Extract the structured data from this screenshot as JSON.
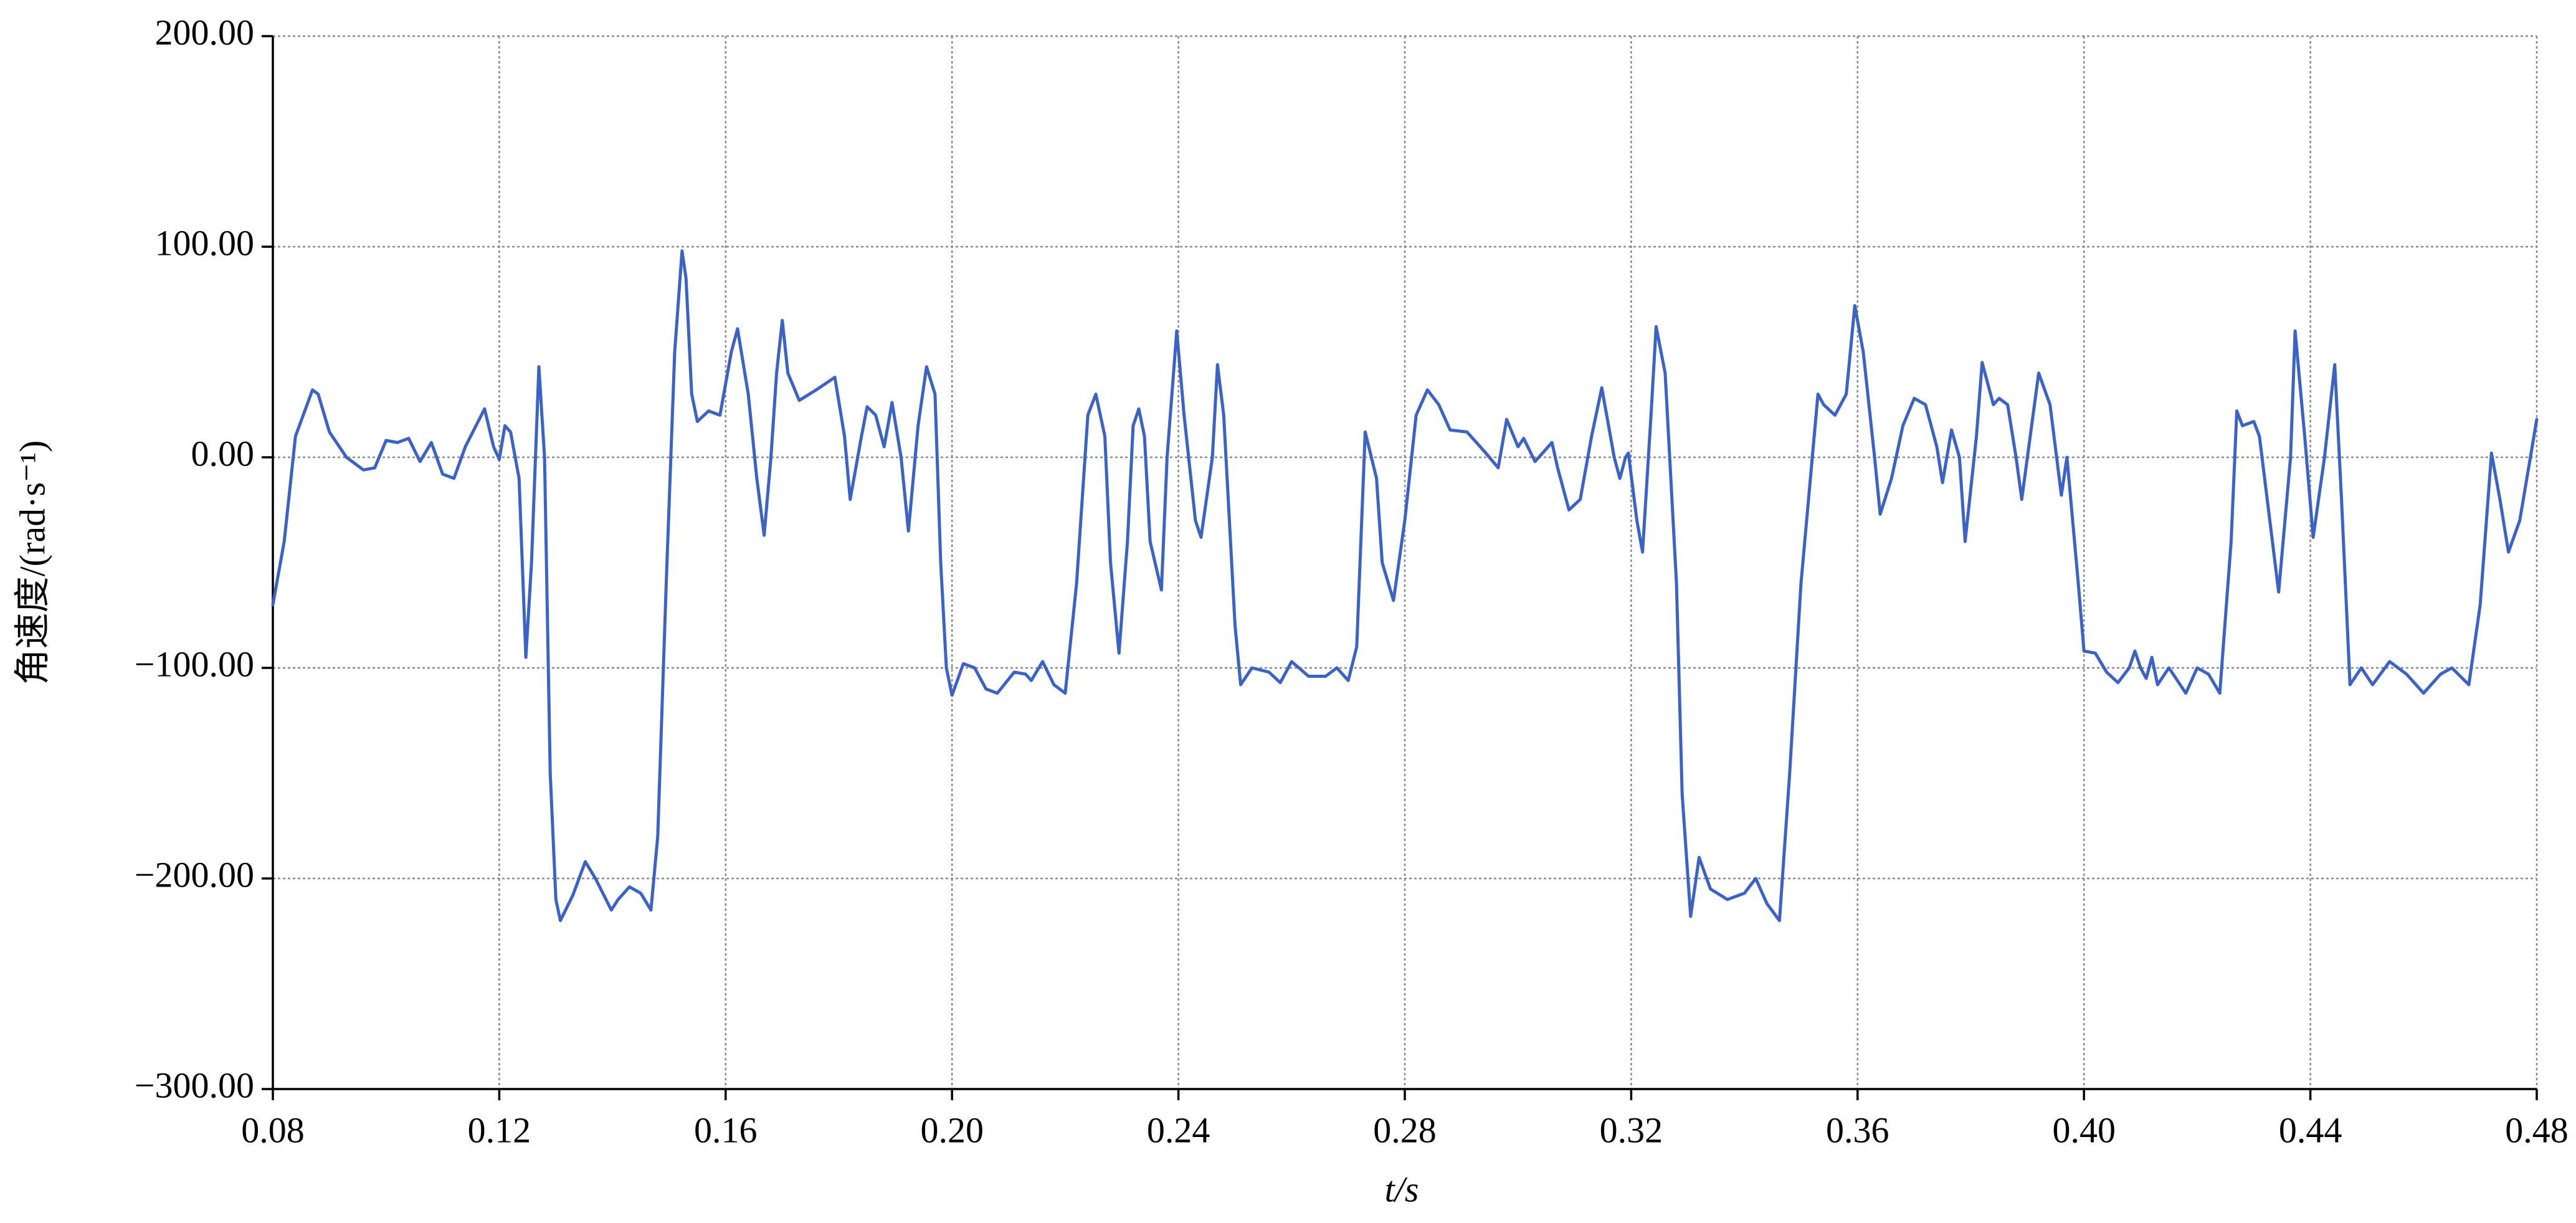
{
  "chart_data": {
    "type": "line",
    "xlabel": "t/s",
    "ylabel": "角速度/(rad·s⁻¹)",
    "xlim": [
      0.08,
      0.48
    ],
    "ylim": [
      -300,
      200
    ],
    "xticks": [
      {
        "value": 0.08,
        "label": "0.08"
      },
      {
        "value": 0.12,
        "label": "0.12"
      },
      {
        "value": 0.16,
        "label": "0.16"
      },
      {
        "value": 0.2,
        "label": "0.20"
      },
      {
        "value": 0.24,
        "label": "0.24"
      },
      {
        "value": 0.28,
        "label": "0.28"
      },
      {
        "value": 0.32,
        "label": "0.32"
      },
      {
        "value": 0.36,
        "label": "0.36"
      },
      {
        "value": 0.4,
        "label": "0.40"
      },
      {
        "value": 0.44,
        "label": "0.44"
      },
      {
        "value": 0.48,
        "label": "0.48"
      }
    ],
    "yticks": [
      {
        "value": 200,
        "label": "200.00"
      },
      {
        "value": 100,
        "label": "100.00"
      },
      {
        "value": 0,
        "label": "0.00"
      },
      {
        "value": -100,
        "label": "−100.00"
      },
      {
        "value": -200,
        "label": "−200.00"
      },
      {
        "value": -300,
        "label": "−300.00"
      }
    ],
    "grid": true,
    "series": [
      {
        "color": "#3b63c6",
        "x": [
          0.08,
          0.082,
          0.084,
          0.087,
          0.088,
          0.09,
          0.093,
          0.096,
          0.098,
          0.1,
          0.102,
          0.104,
          0.106,
          0.108,
          0.11,
          0.112,
          0.114,
          0.1174,
          0.119,
          0.12,
          0.121,
          0.122,
          0.1235,
          0.1247,
          0.1257,
          0.127,
          0.128,
          0.129,
          0.13,
          0.1308,
          0.133,
          0.1352,
          0.137,
          0.1398,
          0.141,
          0.143,
          0.145,
          0.1468,
          0.148,
          0.1495,
          0.151,
          0.1523,
          0.153,
          0.154,
          0.155,
          0.157,
          0.159,
          0.161,
          0.1621,
          0.164,
          0.1655,
          0.1668,
          0.168,
          0.169,
          0.17,
          0.171,
          0.173,
          0.176,
          0.1793,
          0.181,
          0.182,
          0.184,
          0.185,
          0.1865,
          0.188,
          0.1894,
          0.191,
          0.1923,
          0.194,
          0.1955,
          0.197,
          0.198,
          0.199,
          0.2,
          0.202,
          0.204,
          0.206,
          0.208,
          0.211,
          0.213,
          0.214,
          0.216,
          0.218,
          0.22,
          0.222,
          0.224,
          0.2254,
          0.227,
          0.228,
          0.2295,
          0.231,
          0.232,
          0.233,
          0.234,
          0.235,
          0.237,
          0.238,
          0.2397,
          0.241,
          0.243,
          0.244,
          0.246,
          0.2469,
          0.248,
          0.25,
          0.251,
          0.253,
          0.256,
          0.258,
          0.26,
          0.263,
          0.266,
          0.268,
          0.27,
          0.2715,
          0.273,
          0.275,
          0.276,
          0.278,
          0.28,
          0.282,
          0.284,
          0.286,
          0.288,
          0.291,
          0.294,
          0.2965,
          0.298,
          0.3,
          0.301,
          0.303,
          0.306,
          0.307,
          0.309,
          0.311,
          0.313,
          0.3148,
          0.317,
          0.318,
          0.319,
          0.3195,
          0.321,
          0.322,
          0.3235,
          0.3244,
          0.326,
          0.328,
          0.329,
          0.3305,
          0.332,
          0.334,
          0.337,
          0.34,
          0.342,
          0.344,
          0.3462,
          0.348,
          0.35,
          0.352,
          0.353,
          0.354,
          0.356,
          0.358,
          0.3595,
          0.361,
          0.363,
          0.364,
          0.366,
          0.368,
          0.37,
          0.372,
          0.374,
          0.375,
          0.3766,
          0.378,
          0.379,
          0.381,
          0.382,
          0.384,
          0.385,
          0.3865,
          0.388,
          0.389,
          0.3905,
          0.392,
          0.394,
          0.396,
          0.397,
          0.399,
          0.4,
          0.402,
          0.404,
          0.406,
          0.408,
          0.409,
          0.41,
          0.411,
          0.412,
          0.413,
          0.415,
          0.416,
          0.418,
          0.42,
          0.422,
          0.424,
          0.426,
          0.427,
          0.428,
          0.43,
          0.431,
          0.4344,
          0.4365,
          0.4373,
          0.439,
          0.4405,
          0.4425,
          0.4443,
          0.4455,
          0.447,
          0.449,
          0.451,
          0.454,
          0.457,
          0.46,
          0.463,
          0.465,
          0.468,
          0.47,
          0.472,
          0.4735,
          0.475,
          0.477,
          0.48
        ],
        "values": [
          -70,
          -40,
          10,
          32,
          30,
          12,
          0,
          -6,
          -5,
          8,
          7,
          9,
          -2,
          7,
          -8,
          -10,
          5,
          23,
          5,
          -1,
          15,
          12,
          -10,
          -95,
          -50,
          43,
          0,
          -150,
          -210,
          -220,
          -208,
          -192,
          -200,
          -215,
          -210,
          -204,
          -207,
          -215,
          -180,
          -60,
          50,
          98,
          85,
          30,
          17,
          22,
          20,
          50,
          61,
          30,
          -10,
          -37,
          0,
          40,
          65,
          40,
          27,
          32,
          38,
          10,
          -20,
          10,
          24,
          20,
          5,
          26,
          0,
          -35,
          15,
          43,
          30,
          -50,
          -100,
          -113,
          -98,
          -100,
          -110,
          -112,
          -102,
          -103,
          -106,
          -97,
          -108,
          -112,
          -60,
          20,
          30,
          10,
          -50,
          -93,
          -40,
          15,
          23,
          10,
          -40,
          -63,
          0,
          60,
          20,
          -30,
          -38,
          0,
          44,
          20,
          -80,
          -108,
          -100,
          -102,
          -107,
          -97,
          -104,
          -104,
          -100,
          -106,
          -90,
          12,
          -10,
          -50,
          -68,
          -30,
          20,
          32,
          25,
          13,
          12,
          3,
          -5,
          18,
          5,
          9,
          -2,
          7,
          -5,
          -25,
          -20,
          10,
          33,
          0,
          -10,
          0,
          2,
          -30,
          -45,
          20,
          62,
          40,
          -60,
          -160,
          -218,
          -190,
          -205,
          -210,
          -207,
          -200,
          -212,
          -220,
          -150,
          -60,
          0,
          30,
          25,
          20,
          30,
          72,
          50,
          0,
          -27,
          -10,
          15,
          28,
          25,
          5,
          -12,
          13,
          0,
          -40,
          10,
          45,
          25,
          28,
          25,
          0,
          -20,
          10,
          40,
          25,
          -18,
          0,
          -60,
          -92,
          -93,
          -102,
          -107,
          -100,
          -92,
          -100,
          -105,
          -95,
          -108,
          -100,
          -104,
          -112,
          -100,
          -103,
          -112,
          -40,
          22,
          15,
          17,
          10,
          -64,
          0,
          60,
          10,
          -38,
          0,
          44,
          -20,
          -108,
          -100,
          -108,
          -97,
          -103,
          -112,
          -103,
          -100,
          -108,
          -70,
          2,
          -20,
          -45,
          -30,
          18
        ]
      }
    ]
  }
}
